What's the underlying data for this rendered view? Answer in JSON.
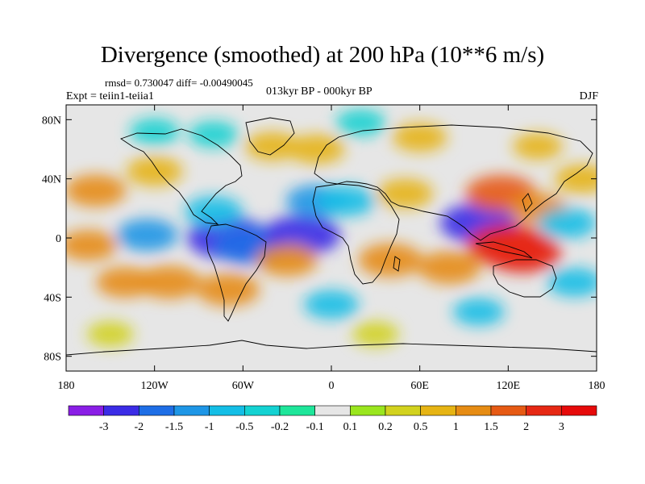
{
  "title": "Divergence (smoothed) at 200 hPa (10**6 m/s)",
  "stats_line": "rmsd= 0.730047 diff= -0.00490045",
  "expt_line": "Expt = teiin1-teiia1",
  "period_line": "013kyr BP - 000kyr BP",
  "season": "DJF",
  "chart_data": {
    "type": "heatmap",
    "title": "Divergence (smoothed) at 200 hPa (10**6 m/s)",
    "units": "10**6 m/s",
    "rmsd": 0.730047,
    "diff": -0.00490045,
    "x_ticks": [
      "180",
      "120W",
      "60W",
      "0",
      "60E",
      "120E",
      "180"
    ],
    "y_ticks": [
      "80N",
      "40N",
      "0",
      "40S",
      "80S"
    ],
    "xlim": [
      -180,
      180
    ],
    "ylim": [
      -90,
      90
    ],
    "colorbar": {
      "labels": [
        "-3",
        "-2",
        "-1.5",
        "-1",
        "-0.5",
        "-0.2",
        "-0.1",
        "0.1",
        "0.2",
        "0.5",
        "1",
        "1.5",
        "2",
        "3"
      ],
      "colors": [
        "#8a1ee6",
        "#3b2ce6",
        "#1e6ee6",
        "#1e96e6",
        "#14bee6",
        "#14d2d2",
        "#1ee69a",
        "#e6e6e6",
        "#9ae61e",
        "#d2d21e",
        "#e6b414",
        "#e68c14",
        "#e65a14",
        "#e62814",
        "#e60a0a"
      ]
    },
    "fields": [
      {
        "lon": -110,
        "lat": -30,
        "value": 1.3
      },
      {
        "lon": -140,
        "lat": -30,
        "value": 1.0
      },
      {
        "lon": -160,
        "lat": 32,
        "value": 1.2
      },
      {
        "lon": -120,
        "lat": 45,
        "value": 0.9
      },
      {
        "lon": -165,
        "lat": -5,
        "value": 1.0
      },
      {
        "lon": -125,
        "lat": 2,
        "value": -1.2
      },
      {
        "lon": -70,
        "lat": 0,
        "value": -2.5
      },
      {
        "lon": -55,
        "lat": -5,
        "value": -2.0
      },
      {
        "lon": -80,
        "lat": 18,
        "value": -1.0
      },
      {
        "lon": -20,
        "lat": 2,
        "value": -2.2
      },
      {
        "lon": -10,
        "lat": 25,
        "value": -1.2
      },
      {
        "lon": 10,
        "lat": 25,
        "value": -1.0
      },
      {
        "lon": -30,
        "lat": -15,
        "value": 1.2
      },
      {
        "lon": -70,
        "lat": -35,
        "value": 1.3
      },
      {
        "lon": 40,
        "lat": -15,
        "value": 1.4
      },
      {
        "lon": 80,
        "lat": -20,
        "value": 1.3
      },
      {
        "lon": 50,
        "lat": 30,
        "value": 0.9
      },
      {
        "lon": 100,
        "lat": 10,
        "value": -2.2
      },
      {
        "lon": 115,
        "lat": 30,
        "value": 1.8
      },
      {
        "lon": 120,
        "lat": -5,
        "value": 2.5
      },
      {
        "lon": 130,
        "lat": -10,
        "value": 2.2
      },
      {
        "lon": 140,
        "lat": 20,
        "value": 1.0
      },
      {
        "lon": 160,
        "lat": 10,
        "value": -1.0
      },
      {
        "lon": 170,
        "lat": 40,
        "value": 0.8
      },
      {
        "lon": 165,
        "lat": -30,
        "value": -0.8
      },
      {
        "lon": -40,
        "lat": 62,
        "value": 0.8
      },
      {
        "lon": -10,
        "lat": 60,
        "value": 0.9
      },
      {
        "lon": 60,
        "lat": 68,
        "value": 0.8
      },
      {
        "lon": 140,
        "lat": 62,
        "value": 0.5
      },
      {
        "lon": -120,
        "lat": 72,
        "value": -0.5
      },
      {
        "lon": -80,
        "lat": 70,
        "value": -0.5
      },
      {
        "lon": 20,
        "lat": 78,
        "value": -0.5
      },
      {
        "lon": 0,
        "lat": -45,
        "value": -0.8
      },
      {
        "lon": 100,
        "lat": -50,
        "value": -0.6
      },
      {
        "lon": -150,
        "lat": -65,
        "value": 0.3
      },
      {
        "lon": 30,
        "lat": -65,
        "value": 0.3
      }
    ]
  }
}
